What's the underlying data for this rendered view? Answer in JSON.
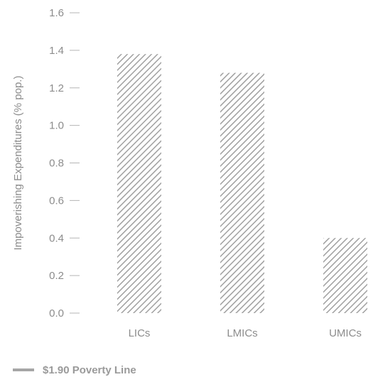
{
  "chart_data": {
    "type": "bar",
    "categories": [
      "LICs",
      "LMICs",
      "UMICs"
    ],
    "series": [
      {
        "name": "$1.90 Poverty Line",
        "values": [
          1.38,
          1.28,
          0.4
        ]
      }
    ],
    "ylabel": "Impoverishing Expenditures (% pop.)",
    "ylim": [
      0,
      1.6
    ],
    "yticks": [
      "0.0",
      "0.2",
      "0.4",
      "0.6",
      "0.8",
      "1.0",
      "1.2",
      "1.4",
      "1.6"
    ],
    "grid": false,
    "legend_position": "bottom-left",
    "colors": {
      "bar": "#a0a0a0",
      "axis_text": "#8c8c8c",
      "legend_line": "#a6a6a6"
    }
  }
}
